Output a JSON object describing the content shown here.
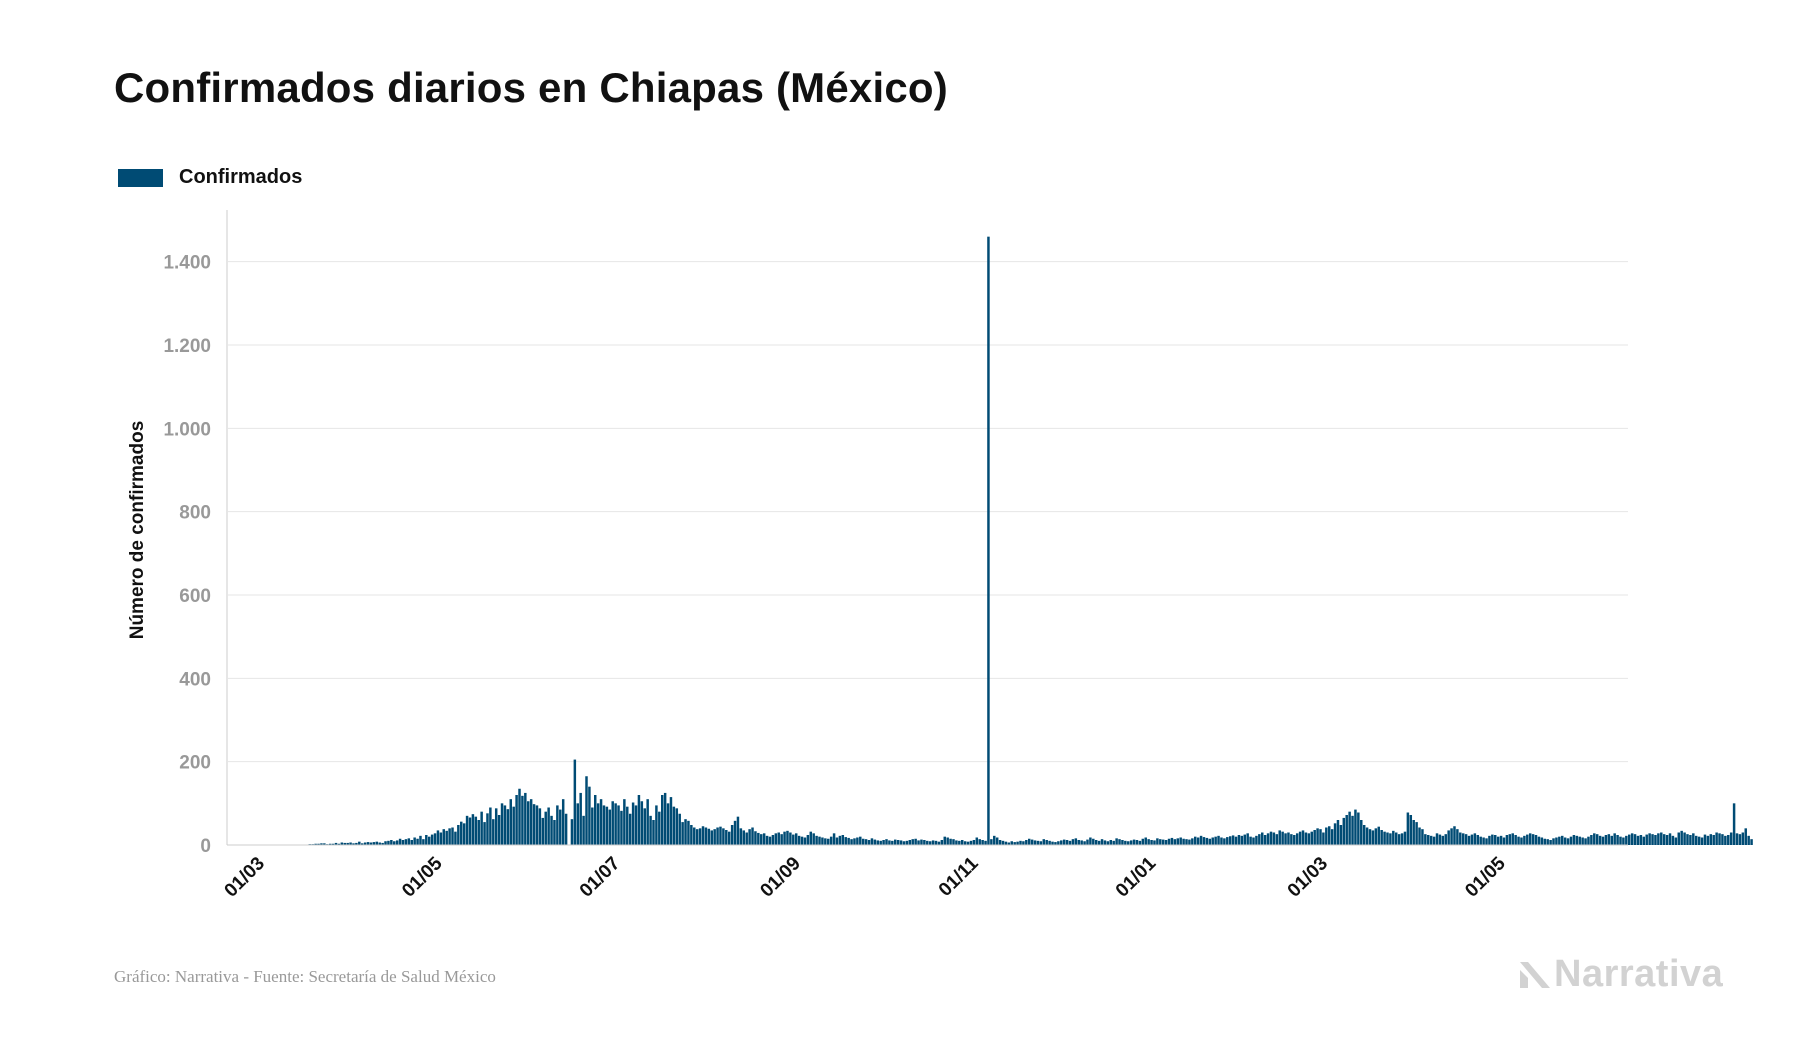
{
  "colors": {
    "bar": "#004b74",
    "grid": "#e6e6e6",
    "tick": "#999999",
    "axis_line": "#cccccc"
  },
  "chart_data": {
    "type": "bar",
    "title": "Confirmados diarios en Chiapas (México)",
    "ylabel": "Número de confirmados",
    "xlabel": "",
    "ylim": [
      0,
      1500
    ],
    "y_ticks": [
      {
        "value": 0,
        "label": "0"
      },
      {
        "value": 200,
        "label": "200"
      },
      {
        "value": 400,
        "label": "400"
      },
      {
        "value": 600,
        "label": "600"
      },
      {
        "value": 800,
        "label": "800"
      },
      {
        "value": 1000,
        "label": "1.000"
      },
      {
        "value": 1200,
        "label": "1.200"
      },
      {
        "value": 1400,
        "label": "1.400"
      }
    ],
    "x_range": [
      "2020-02-17",
      "2021-06-12"
    ],
    "x_ticks": [
      {
        "date": "2020-03-01",
        "label": "01/03"
      },
      {
        "date": "2020-05-01",
        "label": "01/05"
      },
      {
        "date": "2020-07-01",
        "label": "01/07"
      },
      {
        "date": "2020-09-01",
        "label": "01/09"
      },
      {
        "date": "2020-11-01",
        "label": "01/11"
      },
      {
        "date": "2021-01-01",
        "label": "01/01"
      },
      {
        "date": "2021-03-01",
        "label": "01/03"
      },
      {
        "date": "2021-05-01",
        "label": "01/05"
      }
    ],
    "legend": {
      "position": "top-left",
      "entries": [
        "Confirmados"
      ]
    },
    "series": [
      {
        "name": "Confirmados",
        "start_date": "2020-02-20",
        "values": [
          0,
          0,
          0,
          0,
          0,
          0,
          0,
          0,
          0,
          0,
          1,
          1,
          1,
          1,
          1,
          1,
          1,
          1,
          1,
          1,
          1,
          1,
          1,
          1,
          1,
          2,
          2,
          3,
          3,
          4,
          4,
          2,
          3,
          3,
          5,
          3,
          6,
          5,
          5,
          6,
          4,
          5,
          8,
          4,
          6,
          7,
          6,
          7,
          8,
          6,
          5,
          9,
          10,
          12,
          9,
          11,
          15,
          12,
          14,
          16,
          12,
          18,
          15,
          22,
          14,
          24,
          20,
          25,
          28,
          35,
          30,
          38,
          34,
          40,
          42,
          32,
          48,
          56,
          52,
          70,
          66,
          74,
          68,
          60,
          80,
          55,
          76,
          90,
          62,
          88,
          72,
          100,
          95,
          86,
          110,
          92,
          120,
          135,
          118,
          125,
          105,
          110,
          98,
          95,
          88,
          65,
          80,
          90,
          70,
          60,
          95,
          85,
          110,
          75,
          0,
          62,
          205,
          100,
          125,
          70,
          165,
          140,
          90,
          120,
          100,
          110,
          95,
          92,
          85,
          105,
          100,
          95,
          82,
          110,
          92,
          75,
          102,
          95,
          120,
          105,
          88,
          110,
          70,
          60,
          95,
          80,
          120,
          125,
          100,
          115,
          92,
          88,
          75,
          55,
          62,
          58,
          48,
          42,
          38,
          40,
          45,
          42,
          39,
          35,
          38,
          42,
          44,
          40,
          36,
          32,
          48,
          58,
          68,
          40,
          35,
          30,
          38,
          42,
          33,
          29,
          26,
          28,
          22,
          20,
          24,
          28,
          30,
          26,
          32,
          34,
          30,
          25,
          28,
          22,
          20,
          18,
          24,
          32,
          28,
          22,
          20,
          18,
          16,
          15,
          20,
          28,
          18,
          22,
          24,
          19,
          17,
          14,
          16,
          18,
          20,
          15,
          14,
          12,
          16,
          13,
          11,
          10,
          12,
          14,
          11,
          10,
          13,
          12,
          11,
          9,
          10,
          12,
          14,
          15,
          11,
          13,
          12,
          10,
          9,
          11,
          10,
          8,
          12,
          20,
          18,
          15,
          14,
          11,
          10,
          12,
          9,
          8,
          10,
          12,
          18,
          14,
          12,
          10,
          1460,
          14,
          22,
          18,
          12,
          10,
          8,
          6,
          9,
          7,
          8,
          10,
          9,
          12,
          15,
          13,
          11,
          10,
          9,
          14,
          12,
          10,
          8,
          7,
          9,
          11,
          13,
          12,
          10,
          14,
          16,
          12,
          11,
          9,
          13,
          18,
          15,
          12,
          10,
          14,
          11,
          9,
          12,
          10,
          16,
          14,
          12,
          10,
          9,
          11,
          13,
          12,
          10,
          15,
          18,
          14,
          12,
          11,
          16,
          14,
          13,
          12,
          15,
          17,
          14,
          16,
          18,
          15,
          14,
          13,
          16,
          20,
          18,
          22,
          19,
          17,
          15,
          18,
          20,
          22,
          18,
          16,
          19,
          21,
          23,
          20,
          24,
          22,
          25,
          28,
          20,
          18,
          22,
          26,
          30,
          24,
          28,
          32,
          30,
          26,
          35,
          32,
          28,
          30,
          26,
          24,
          28,
          32,
          35,
          30,
          28,
          32,
          36,
          40,
          38,
          30,
          42,
          45,
          38,
          52,
          60,
          48,
          65,
          72,
          80,
          70,
          85,
          78,
          60,
          48,
          42,
          38,
          35,
          40,
          44,
          36,
          32,
          30,
          28,
          34,
          30,
          26,
          28,
          32,
          78,
          72,
          60,
          55,
          42,
          38,
          26,
          24,
          22,
          20,
          28,
          25,
          22,
          26,
          35,
          40,
          45,
          38,
          30,
          28,
          26,
          22,
          25,
          28,
          24,
          20,
          18,
          16,
          22,
          25,
          24,
          20,
          22,
          18,
          24,
          26,
          28,
          24,
          20,
          18,
          22,
          25,
          28,
          26,
          24,
          20,
          18,
          15,
          14,
          12,
          16,
          18,
          20,
          22,
          18,
          16,
          20,
          24,
          22,
          20,
          18,
          16,
          20,
          24,
          28,
          26,
          22,
          20,
          24,
          26,
          22,
          28,
          24,
          20,
          18,
          22,
          25,
          28,
          26,
          22,
          24,
          20,
          25,
          28,
          26,
          24,
          28,
          30,
          26,
          24,
          28,
          22,
          18,
          30,
          34,
          30,
          26,
          24,
          28,
          22,
          20,
          18,
          25,
          22,
          26,
          24,
          30,
          28,
          26,
          22,
          24,
          30,
          100,
          28,
          26,
          30,
          40,
          22,
          14
        ]
      }
    ]
  },
  "footer": {
    "source": "Gráfico: Narrativa - Fuente: Secretaría de Salud México",
    "brand": "Narrativa",
    "brand_icon": "narrativa-logo-icon"
  }
}
